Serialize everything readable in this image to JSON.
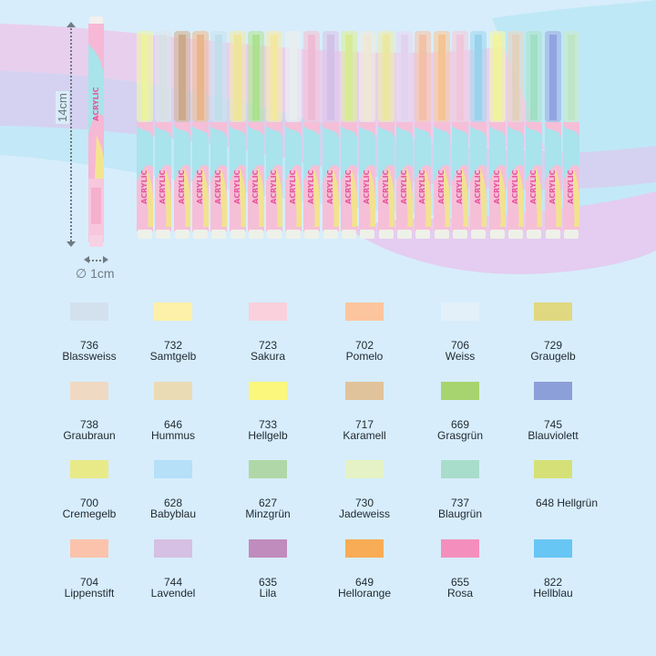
{
  "product": {
    "brand_text": "ACRYLIC",
    "marker_count": 24,
    "length_label": "14cm",
    "diameter_label": "∅ 1cm",
    "cap_colors": [
      "#e6f07a",
      "#c9d6dc",
      "#b98a5c",
      "#e49a5e",
      "#a9d4e4",
      "#eadc78",
      "#8ed765",
      "#f0e07c",
      "#dfe8ea",
      "#e9a3c4",
      "#c3a8df",
      "#c9e46a",
      "#e8e0c8",
      "#e4e07a",
      "#d7c3ea",
      "#f0a882",
      "#f2ad6a",
      "#ebb1cc",
      "#6fc3e6",
      "#ecef7a",
      "#d8c0a6",
      "#7ed4ae",
      "#6a82d4",
      "#a8dcae"
    ],
    "single_marker_cap": "#f6bcd6"
  },
  "background": {
    "base": "#d7edfb",
    "wave_pink": "#e7cdee",
    "wave_lavender": "#d3d0ee",
    "wave_cyan": "#bfe8f6"
  },
  "swatches": [
    {
      "code": "736",
      "name": "Blassweiss",
      "color": "#d3e1ee"
    },
    {
      "code": "732",
      "name": "Samtgelb",
      "color": "#fdf0a8"
    },
    {
      "code": "723",
      "name": "Sakura",
      "color": "#f9d0dc"
    },
    {
      "code": "702",
      "name": "Pomelo",
      "color": "#fdc59e"
    },
    {
      "code": "706",
      "name": "Weiss",
      "color": "#e3f0f9"
    },
    {
      "code": "729",
      "name": "Graugelb",
      "color": "#e0d880"
    },
    {
      "code": "738",
      "name": "Graubraun",
      "color": "#f0d9c2"
    },
    {
      "code": "646",
      "name": "Hummus",
      "color": "#eadbb5"
    },
    {
      "code": "733",
      "name": "Hellgelb",
      "color": "#fbf77c"
    },
    {
      "code": "717",
      "name": "Karamell",
      "color": "#e0c39a"
    },
    {
      "code": "669",
      "name": "Grasgrün",
      "color": "#a7d46e"
    },
    {
      "code": "745",
      "name": "Blauviolett",
      "color": "#8c9fd8"
    },
    {
      "code": "700",
      "name": "Cremegelb",
      "color": "#e8ea88"
    },
    {
      "code": "628",
      "name": "Babyblau",
      "color": "#b5e0f8"
    },
    {
      "code": "627",
      "name": "Minzgrün",
      "color": "#b0d7a7"
    },
    {
      "code": "730",
      "name": "Jadeweiss",
      "color": "#e5f2c5"
    },
    {
      "code": "737",
      "name": "Blaugrün",
      "color": "#a8dccb"
    },
    {
      "code": "648",
      "name": "Hellgrün",
      "color": "#d5e176",
      "inline": true,
      "label": "648 Hellgrün"
    },
    {
      "code": "704",
      "name": "Lippenstift",
      "color": "#fbc3ac"
    },
    {
      "code": "744",
      "name": "Lavendel",
      "color": "#d6c0e3"
    },
    {
      "code": "635",
      "name": "Lila",
      "color": "#c08bbd"
    },
    {
      "code": "649",
      "name": "Hellorange",
      "color": "#f7ac55"
    },
    {
      "code": "655",
      "name": "Rosa",
      "color": "#f48fbd"
    },
    {
      "code": "822",
      "name": "Hellblau",
      "color": "#68c6f4"
    }
  ]
}
